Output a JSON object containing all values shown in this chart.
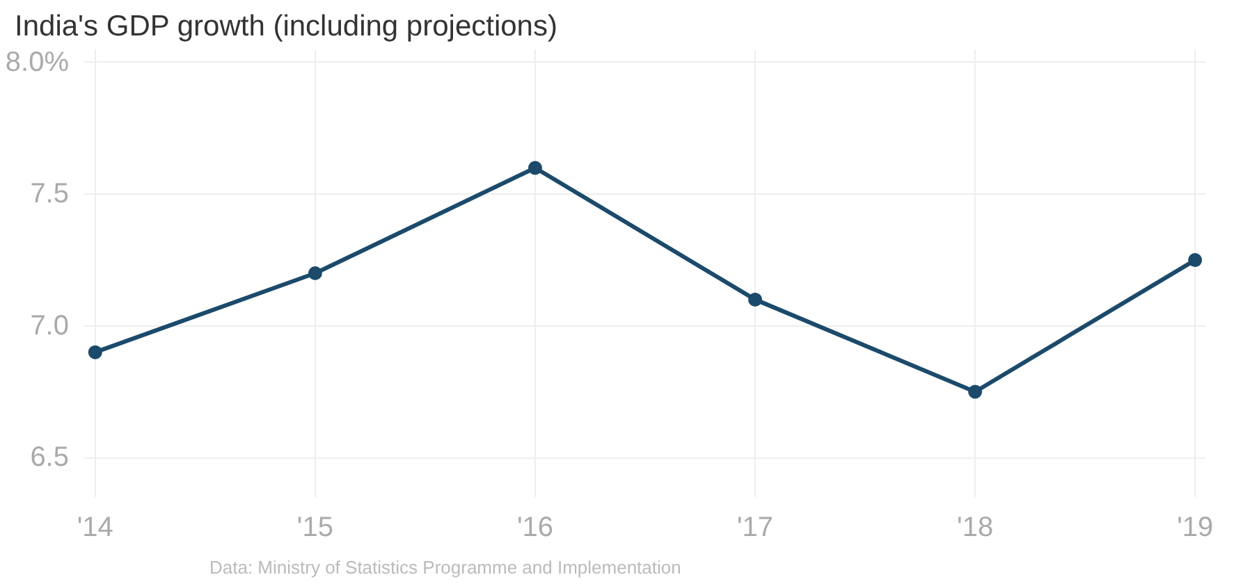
{
  "chart_data": {
    "type": "line",
    "title": "India's GDP growth (including projections)",
    "x": [
      2014,
      2015,
      2016,
      2017,
      2018,
      2019
    ],
    "series": [
      {
        "color": "#1b4a6b",
        "values": [
          6.9,
          7.2,
          7.6,
          7.1,
          6.75,
          7.25
        ]
      }
    ],
    "xlim": [
      2013.95,
      2019.05
    ],
    "ylim": [
      6.35,
      8.05
    ],
    "xticks": [
      {
        "value": 2014,
        "label": "'14"
      },
      {
        "value": 2015,
        "label": "'15"
      },
      {
        "value": 2016,
        "label": "'16"
      },
      {
        "value": 2017,
        "label": "'17"
      },
      {
        "value": 2018,
        "label": "'18"
      },
      {
        "value": 2019,
        "label": "'19"
      }
    ],
    "yticks": [
      {
        "value": 6.5,
        "label": "6.5"
      },
      {
        "value": 7.0,
        "label": "7.0"
      },
      {
        "value": 7.5,
        "label": "7.5"
      },
      {
        "value": 8.0,
        "label": "8.0%"
      }
    ],
    "grid": true,
    "marker": "circle",
    "line_style": "solid",
    "annotations": [
      "Data: Ministry of Statistics Programme and Implementation"
    ]
  }
}
